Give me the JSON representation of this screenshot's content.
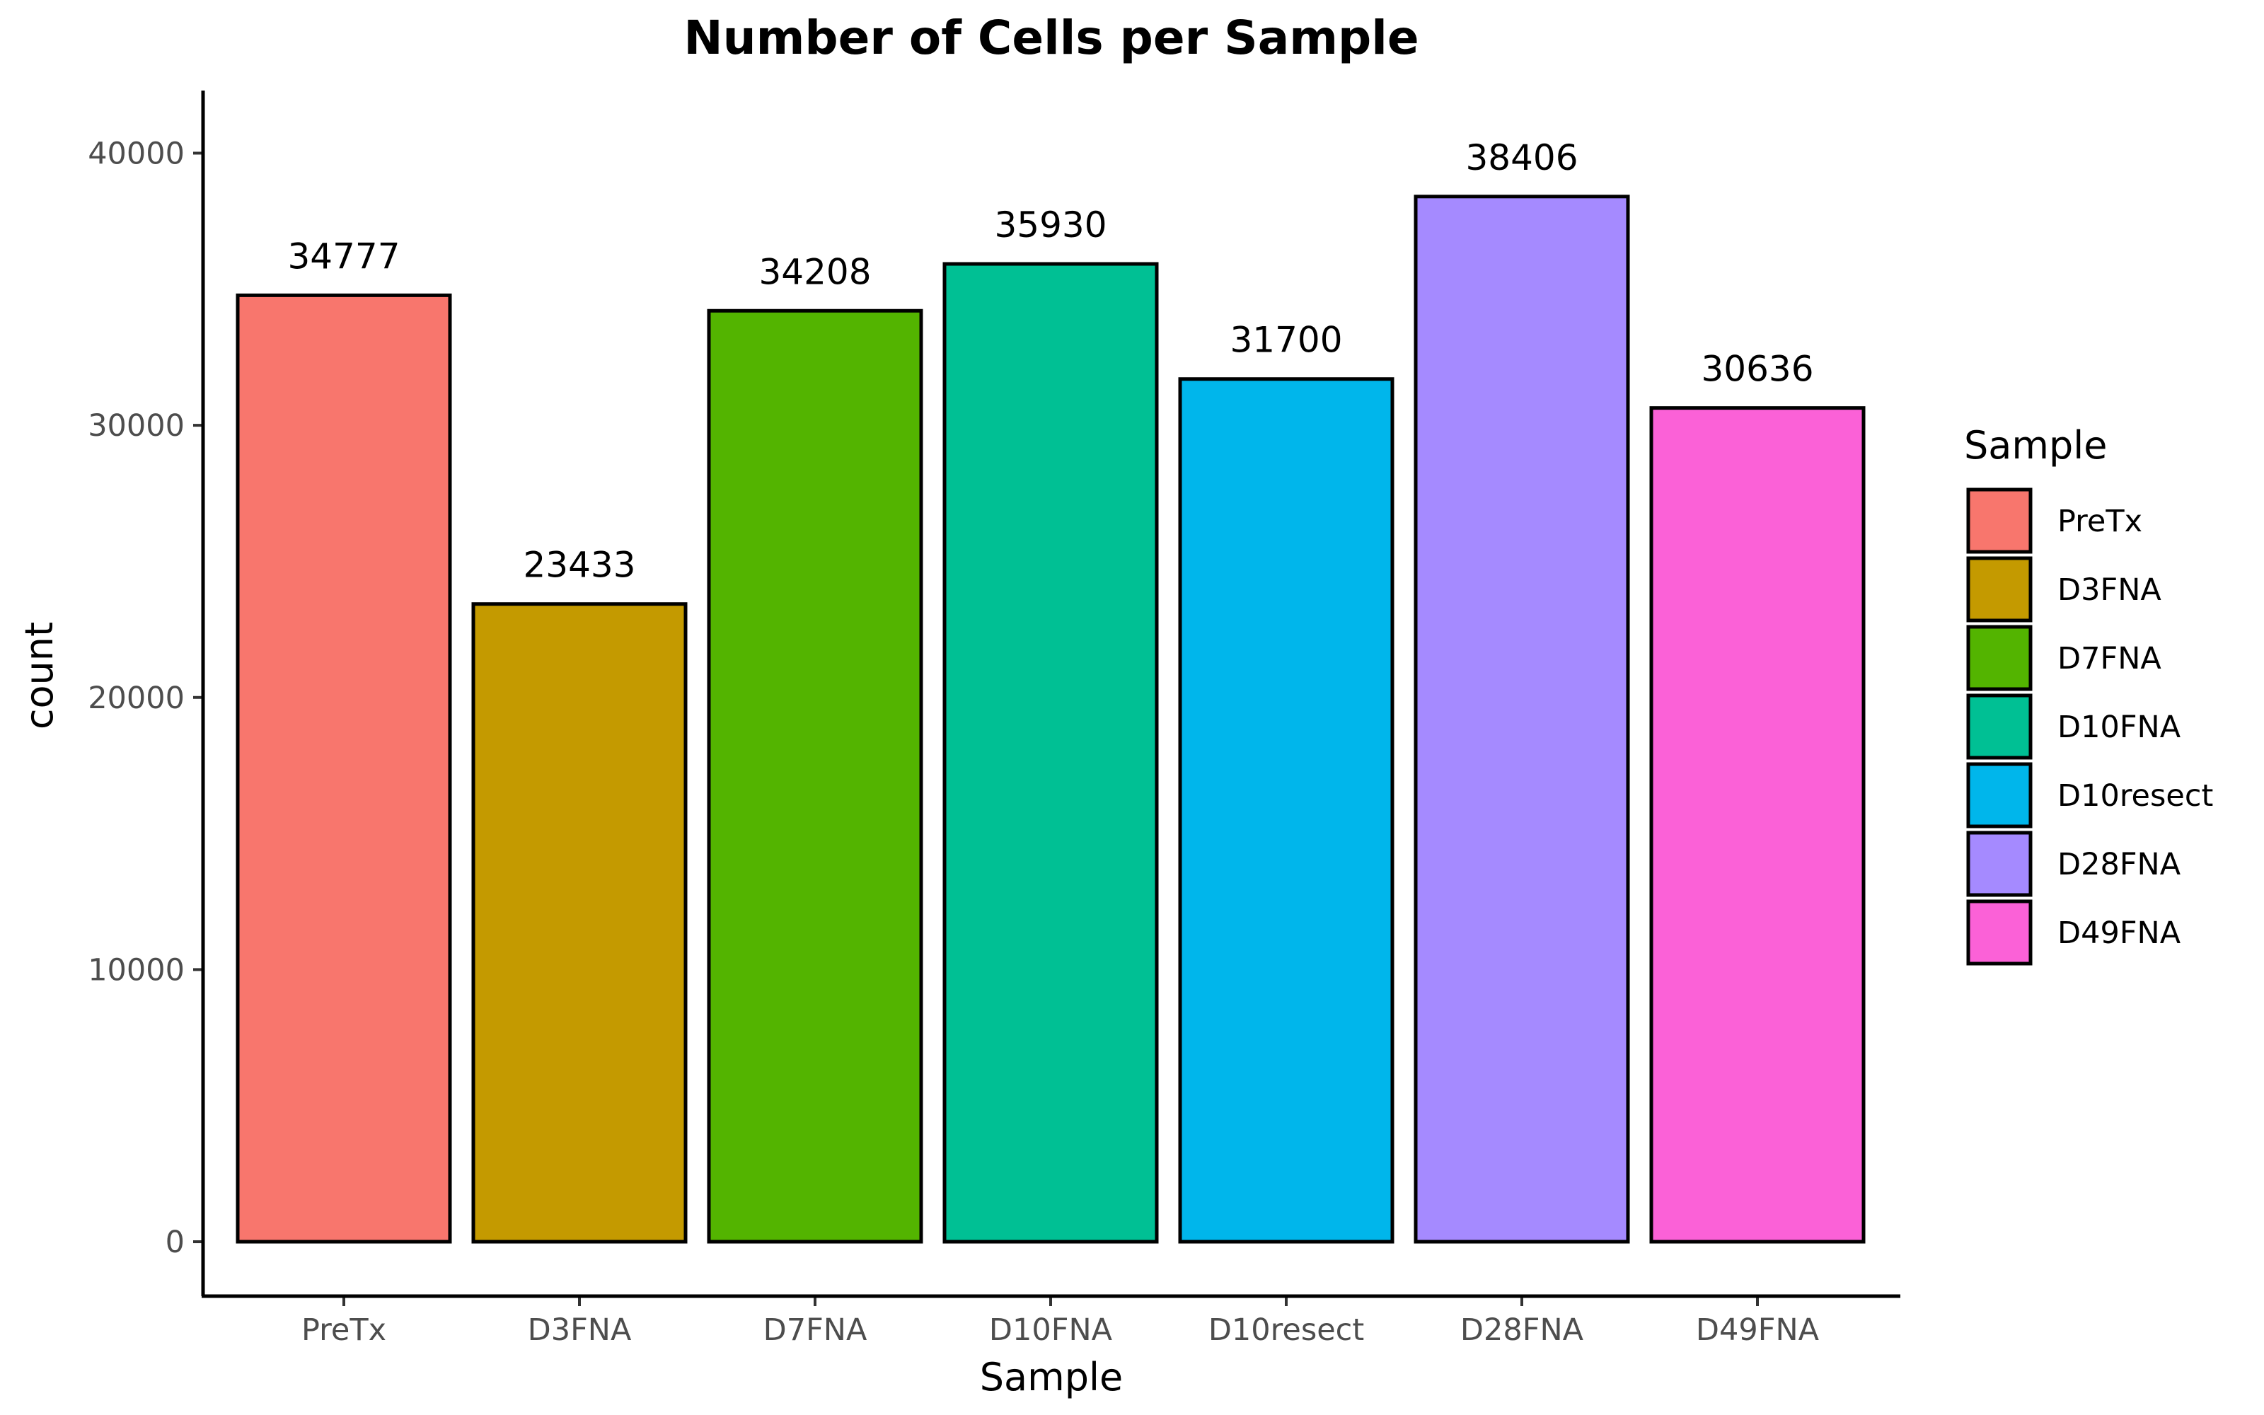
{
  "chart_data": {
    "type": "bar",
    "title": "Number of Cells per Sample",
    "xlabel": "Sample",
    "ylabel": "count",
    "categories": [
      "PreTx",
      "D3FNA",
      "D7FNA",
      "D10FNA",
      "D10resect",
      "D28FNA",
      "D49FNA"
    ],
    "values": [
      34777,
      23433,
      34208,
      35930,
      31700,
      38406,
      30636
    ],
    "data_labels": [
      "34777",
      "23433",
      "34208",
      "35930",
      "31700",
      "38406",
      "30636"
    ],
    "colors": [
      "#F8766D",
      "#C49A00",
      "#53B400",
      "#00C094",
      "#00B6EB",
      "#A58AFF",
      "#FB61D7"
    ],
    "bar_outline_color": "#000000",
    "yticks": [
      0,
      10000,
      20000,
      30000,
      40000
    ],
    "ytick_labels": [
      "0",
      "10000",
      "20000",
      "30000",
      "40000"
    ],
    "ylim": [
      -2000,
      42300
    ],
    "grid": false,
    "legend": {
      "title": "Sample",
      "placement": "right",
      "entries": [
        "PreTx",
        "D3FNA",
        "D7FNA",
        "D10FNA",
        "D10resect",
        "D28FNA",
        "D49FNA"
      ]
    }
  }
}
